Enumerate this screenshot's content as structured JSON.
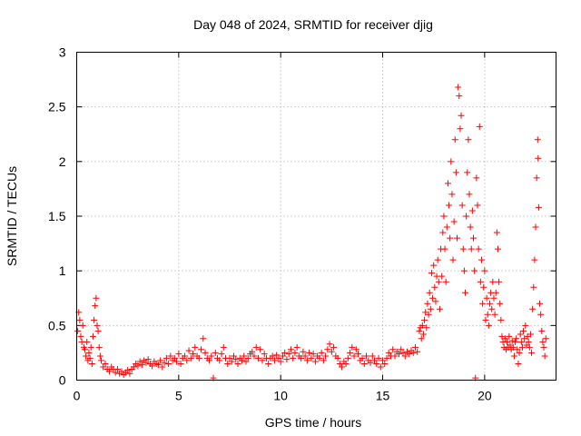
{
  "chart_data": {
    "type": "scatter",
    "title": "Day 048 of 2024, SRMTID for receiver djig",
    "xlabel": "GPS time / hours",
    "ylabel": "SRMTID / TECUs",
    "xlim": [
      0,
      23.5
    ],
    "ylim": [
      0,
      3
    ],
    "xticks": [
      0,
      5,
      10,
      15,
      20
    ],
    "xtick_labels": [
      "0",
      "5",
      "10",
      "15",
      "20"
    ],
    "yticks": [
      0,
      0.5,
      1,
      1.5,
      2,
      2.5,
      3
    ],
    "ytick_labels": [
      "0",
      "0.5",
      "1",
      "1.5",
      "2",
      "2.5",
      "3"
    ],
    "grid": true,
    "marker": "plus",
    "color": "#ff0000",
    "series": [
      {
        "name": "SRMTID",
        "points": [
          [
            0.05,
            0.45
          ],
          [
            0.1,
            0.62
          ],
          [
            0.15,
            0.55
          ],
          [
            0.2,
            0.4
          ],
          [
            0.25,
            0.35
          ],
          [
            0.3,
            0.5
          ],
          [
            0.35,
            0.3
          ],
          [
            0.4,
            0.28
          ],
          [
            0.45,
            0.22
          ],
          [
            0.5,
            0.35
          ],
          [
            0.55,
            0.18
          ],
          [
            0.6,
            0.25
          ],
          [
            0.65,
            0.2
          ],
          [
            0.7,
            0.3
          ],
          [
            0.75,
            0.15
          ],
          [
            0.8,
            0.4
          ],
          [
            0.85,
            0.55
          ],
          [
            0.9,
            0.68
          ],
          [
            0.95,
            0.75
          ],
          [
            1.0,
            0.5
          ],
          [
            1.05,
            0.45
          ],
          [
            1.1,
            0.3
          ],
          [
            1.15,
            0.22
          ],
          [
            1.2,
            0.18
          ],
          [
            1.3,
            0.12
          ],
          [
            1.4,
            0.15
          ],
          [
            1.5,
            0.1
          ],
          [
            1.6,
            0.08
          ],
          [
            1.7,
            0.12
          ],
          [
            1.8,
            0.1
          ],
          [
            1.9,
            0.07
          ],
          [
            2.0,
            0.1
          ],
          [
            2.1,
            0.06
          ],
          [
            2.2,
            0.08
          ],
          [
            2.3,
            0.05
          ],
          [
            2.4,
            0.07
          ],
          [
            2.5,
            0.09
          ],
          [
            2.6,
            0.06
          ],
          [
            2.7,
            0.1
          ],
          [
            2.8,
            0.12
          ],
          [
            2.9,
            0.15
          ],
          [
            3.0,
            0.13
          ],
          [
            3.1,
            0.17
          ],
          [
            3.2,
            0.14
          ],
          [
            3.3,
            0.18
          ],
          [
            3.4,
            0.16
          ],
          [
            3.5,
            0.19
          ],
          [
            3.6,
            0.15
          ],
          [
            3.7,
            0.13
          ],
          [
            3.8,
            0.17
          ],
          [
            3.9,
            0.15
          ],
          [
            4.0,
            0.14
          ],
          [
            4.1,
            0.18
          ],
          [
            4.2,
            0.12
          ],
          [
            4.3,
            0.16
          ],
          [
            4.4,
            0.2
          ],
          [
            4.5,
            0.15
          ],
          [
            4.6,
            0.22
          ],
          [
            4.7,
            0.18
          ],
          [
            4.8,
            0.2
          ],
          [
            4.9,
            0.17
          ],
          [
            5.0,
            0.24
          ],
          [
            5.1,
            0.15
          ],
          [
            5.2,
            0.2
          ],
          [
            5.3,
            0.22
          ],
          [
            5.4,
            0.18
          ],
          [
            5.5,
            0.27
          ],
          [
            5.6,
            0.2
          ],
          [
            5.7,
            0.24
          ],
          [
            5.8,
            0.3
          ],
          [
            5.9,
            0.22
          ],
          [
            6.0,
            0.2
          ],
          [
            6.1,
            0.28
          ],
          [
            6.2,
            0.38
          ],
          [
            6.3,
            0.25
          ],
          [
            6.4,
            0.2
          ],
          [
            6.5,
            0.18
          ],
          [
            6.6,
            0.22
          ],
          [
            6.7,
            0.02
          ],
          [
            6.8,
            0.25
          ],
          [
            6.9,
            0.2
          ],
          [
            7.0,
            0.18
          ],
          [
            7.1,
            0.24
          ],
          [
            7.2,
            0.3
          ],
          [
            7.3,
            0.2
          ],
          [
            7.4,
            0.15
          ],
          [
            7.5,
            0.2
          ],
          [
            7.6,
            0.17
          ],
          [
            7.7,
            0.22
          ],
          [
            7.8,
            0.19
          ],
          [
            7.9,
            0.15
          ],
          [
            8.0,
            0.2
          ],
          [
            8.1,
            0.18
          ],
          [
            8.2,
            0.22
          ],
          [
            8.3,
            0.17
          ],
          [
            8.4,
            0.2
          ],
          [
            8.5,
            0.24
          ],
          [
            8.6,
            0.26
          ],
          [
            8.7,
            0.22
          ],
          [
            8.8,
            0.3
          ],
          [
            8.9,
            0.2
          ],
          [
            9.0,
            0.28
          ],
          [
            9.1,
            0.18
          ],
          [
            9.2,
            0.24
          ],
          [
            9.3,
            0.2
          ],
          [
            9.4,
            0.15
          ],
          [
            9.5,
            0.2
          ],
          [
            9.6,
            0.22
          ],
          [
            9.7,
            0.18
          ],
          [
            9.8,
            0.23
          ],
          [
            9.9,
            0.2
          ],
          [
            10.0,
            0.17
          ],
          [
            10.1,
            0.22
          ],
          [
            10.2,
            0.25
          ],
          [
            10.3,
            0.19
          ],
          [
            10.4,
            0.24
          ],
          [
            10.5,
            0.28
          ],
          [
            10.6,
            0.2
          ],
          [
            10.7,
            0.25
          ],
          [
            10.8,
            0.3
          ],
          [
            10.9,
            0.22
          ],
          [
            11.0,
            0.2
          ],
          [
            11.1,
            0.26
          ],
          [
            11.2,
            0.22
          ],
          [
            11.3,
            0.18
          ],
          [
            11.4,
            0.25
          ],
          [
            11.5,
            0.2
          ],
          [
            11.6,
            0.24
          ],
          [
            11.7,
            0.17
          ],
          [
            11.8,
            0.22
          ],
          [
            11.9,
            0.2
          ],
          [
            12.0,
            0.25
          ],
          [
            12.1,
            0.18
          ],
          [
            12.2,
            0.22
          ],
          [
            12.3,
            0.28
          ],
          [
            12.4,
            0.33
          ],
          [
            12.5,
            0.26
          ],
          [
            12.6,
            0.3
          ],
          [
            12.7,
            0.22
          ],
          [
            12.8,
            0.2
          ],
          [
            12.9,
            0.15
          ],
          [
            13.0,
            0.12
          ],
          [
            13.1,
            0.17
          ],
          [
            13.2,
            0.15
          ],
          [
            13.3,
            0.2
          ],
          [
            13.4,
            0.25
          ],
          [
            13.5,
            0.3
          ],
          [
            13.6,
            0.22
          ],
          [
            13.7,
            0.28
          ],
          [
            13.8,
            0.24
          ],
          [
            13.9,
            0.18
          ],
          [
            14.0,
            0.2
          ],
          [
            14.1,
            0.15
          ],
          [
            14.2,
            0.22
          ],
          [
            14.3,
            0.18
          ],
          [
            14.4,
            0.16
          ],
          [
            14.5,
            0.22
          ],
          [
            14.6,
            0.18
          ],
          [
            14.7,
            0.15
          ],
          [
            14.8,
            0.2
          ],
          [
            14.9,
            0.12
          ],
          [
            15.0,
            0.18
          ],
          [
            15.1,
            0.15
          ],
          [
            15.2,
            0.2
          ],
          [
            15.3,
            0.25
          ],
          [
            15.4,
            0.22
          ],
          [
            15.5,
            0.28
          ],
          [
            15.6,
            0.22
          ],
          [
            15.7,
            0.26
          ],
          [
            15.8,
            0.24
          ],
          [
            15.9,
            0.28
          ],
          [
            16.0,
            0.25
          ],
          [
            16.1,
            0.22
          ],
          [
            16.2,
            0.26
          ],
          [
            16.3,
            0.24
          ],
          [
            16.4,
            0.27
          ],
          [
            16.5,
            0.25
          ],
          [
            16.6,
            0.3
          ],
          [
            16.7,
            0.26
          ],
          [
            16.8,
            0.45
          ],
          [
            16.85,
            0.48
          ],
          [
            16.9,
            0.38
          ],
          [
            16.95,
            0.5
          ],
          [
            17.0,
            0.42
          ],
          [
            17.05,
            0.55
          ],
          [
            17.1,
            0.62
          ],
          [
            17.15,
            0.48
          ],
          [
            17.2,
            0.7
          ],
          [
            17.25,
            0.6
          ],
          [
            17.3,
            0.8
          ],
          [
            17.35,
            0.65
          ],
          [
            17.4,
            0.98
          ],
          [
            17.45,
            0.75
          ],
          [
            17.5,
            1.05
          ],
          [
            17.55,
            0.85
          ],
          [
            17.6,
            0.72
          ],
          [
            17.65,
            0.95
          ],
          [
            17.7,
            1.1
          ],
          [
            17.75,
            0.9
          ],
          [
            17.8,
            0.65
          ],
          [
            17.85,
            1.2
          ],
          [
            17.9,
            0.95
          ],
          [
            17.95,
            1.35
          ],
          [
            18.0,
            1.5
          ],
          [
            18.05,
            1.2
          ],
          [
            18.1,
            0.9
          ],
          [
            18.15,
            1.4
          ],
          [
            18.2,
            1.8
          ],
          [
            18.25,
            1.6
          ],
          [
            18.3,
            1.3
          ],
          [
            18.35,
            2.0
          ],
          [
            18.4,
            1.7
          ],
          [
            18.45,
            1.1
          ],
          [
            18.5,
            1.45
          ],
          [
            18.55,
            2.2
          ],
          [
            18.6,
            1.9
          ],
          [
            18.65,
            1.3
          ],
          [
            18.7,
            2.68
          ],
          [
            18.75,
            2.6
          ],
          [
            18.8,
            2.3
          ],
          [
            18.85,
            2.42
          ],
          [
            18.9,
            1.6
          ],
          [
            18.95,
            1.2
          ],
          [
            19.0,
            1.0
          ],
          [
            19.05,
            0.8
          ],
          [
            19.1,
            1.5
          ],
          [
            19.15,
            1.9
          ],
          [
            19.2,
            2.2
          ],
          [
            19.25,
            1.7
          ],
          [
            19.3,
            1.4
          ],
          [
            19.35,
            1.2
          ],
          [
            19.4,
            1.55
          ],
          [
            19.45,
            1.3
          ],
          [
            19.5,
            1.0
          ],
          [
            19.55,
            0.02
          ],
          [
            19.6,
            1.85
          ],
          [
            19.65,
            1.6
          ],
          [
            19.7,
            1.2
          ],
          [
            19.75,
            2.32
          ],
          [
            19.8,
            0.9
          ],
          [
            19.85,
            1.1
          ],
          [
            19.9,
            0.7
          ],
          [
            19.95,
            0.85
          ],
          [
            20.0,
            1.0
          ],
          [
            20.05,
            0.55
          ],
          [
            20.1,
            0.75
          ],
          [
            20.15,
            0.6
          ],
          [
            20.2,
            0.5
          ],
          [
            20.25,
            0.7
          ],
          [
            20.3,
            0.8
          ],
          [
            20.35,
            0.65
          ],
          [
            20.4,
            0.9
          ],
          [
            20.45,
            0.75
          ],
          [
            20.5,
            0.6
          ],
          [
            20.55,
            0.8
          ],
          [
            20.6,
            1.35
          ],
          [
            20.65,
            1.2
          ],
          [
            20.7,
            0.9
          ],
          [
            20.75,
            0.7
          ],
          [
            20.8,
            0.55
          ],
          [
            20.85,
            0.4
          ],
          [
            20.9,
            0.35
          ],
          [
            20.95,
            0.3
          ],
          [
            21.0,
            0.38
          ],
          [
            21.05,
            0.28
          ],
          [
            21.1,
            0.35
          ],
          [
            21.15,
            0.3
          ],
          [
            21.2,
            0.4
          ],
          [
            21.25,
            0.32
          ],
          [
            21.3,
            0.28
          ],
          [
            21.35,
            0.36
          ],
          [
            21.4,
            0.3
          ],
          [
            21.45,
            0.22
          ],
          [
            21.5,
            0.35
          ],
          [
            21.55,
            0.38
          ],
          [
            21.6,
            0.28
          ],
          [
            21.65,
            0.15
          ],
          [
            21.7,
            0.25
          ],
          [
            21.75,
            0.42
          ],
          [
            21.8,
            0.35
          ],
          [
            21.85,
            0.3
          ],
          [
            21.9,
            0.45
          ],
          [
            21.95,
            0.38
          ],
          [
            22.0,
            0.5
          ],
          [
            22.05,
            0.32
          ],
          [
            22.1,
            0.4
          ],
          [
            22.15,
            0.35
          ],
          [
            22.2,
            0.3
          ],
          [
            22.25,
            0.42
          ],
          [
            22.3,
            0.25
          ],
          [
            22.35,
            0.65
          ],
          [
            22.4,
            0.85
          ],
          [
            22.45,
            1.1
          ],
          [
            22.5,
            1.4
          ],
          [
            22.55,
            1.85
          ],
          [
            22.6,
            2.2
          ],
          [
            22.62,
            2.03
          ],
          [
            22.65,
            1.58
          ],
          [
            22.7,
            0.7
          ],
          [
            22.75,
            0.6
          ],
          [
            22.8,
            0.45
          ],
          [
            22.85,
            0.35
          ],
          [
            22.9,
            0.3
          ],
          [
            22.95,
            0.22
          ],
          [
            23.0,
            0.38
          ]
        ]
      }
    ]
  }
}
